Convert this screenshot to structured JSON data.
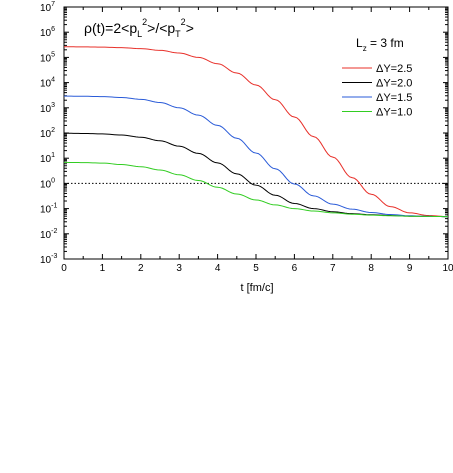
{
  "chart_data": {
    "type": "line",
    "annotation": {
      "prefix": "ρ(t)=2<p",
      "sub_L": "L",
      "sup_1": "2",
      "mid": ">/<p",
      "sub_T": "T",
      "sup_2": "2",
      "suffix": ">"
    },
    "info": {
      "main": "L",
      "sub": "z",
      "rest": " = 3 fm"
    },
    "xlabel": "t [fm/c]",
    "ylabel": "",
    "xlim": [
      0,
      10
    ],
    "ylim_log10": [
      -3,
      7
    ],
    "yscale": "log",
    "x_ticks": [
      "0",
      "1",
      "2",
      "3",
      "4",
      "5",
      "6",
      "7",
      "8",
      "9",
      "10"
    ],
    "y_ticks": [
      {
        "base": "10",
        "exp": "-3"
      },
      {
        "base": "10",
        "exp": "-2"
      },
      {
        "base": "10",
        "exp": "-1"
      },
      {
        "base": "10",
        "exp": "0"
      },
      {
        "base": "10",
        "exp": "1"
      },
      {
        "base": "10",
        "exp": "2"
      },
      {
        "base": "10",
        "exp": "3"
      },
      {
        "base": "10",
        "exp": "4"
      },
      {
        "base": "10",
        "exp": "5"
      },
      {
        "base": "10",
        "exp": "6"
      },
      {
        "base": "10",
        "exp": "7"
      }
    ],
    "reference_line": {
      "y": 1,
      "style": "dotted"
    },
    "legend_position": "top-right",
    "grid": false,
    "x": [
      0,
      0.5,
      1,
      1.5,
      2,
      2.5,
      3,
      3.5,
      4,
      4.5,
      5,
      5.5,
      6,
      6.5,
      7,
      7.5,
      8,
      8.5,
      9,
      9.5,
      10
    ],
    "series": [
      {
        "name": "ΔY=2.5",
        "color": "#e8302a",
        "values": [
          265000,
          262000,
          255000,
          243000,
          222000,
          191000,
          149000,
          100000,
          56000,
          24000,
          8000,
          2100,
          430,
          72,
          11,
          1.7,
          0.37,
          0.12,
          0.068,
          0.053,
          0.048
        ]
      },
      {
        "name": "ΔY=2.0",
        "color": "#000000",
        "values": [
          98,
          96,
          92,
          83,
          68,
          49,
          30,
          15.5,
          6.5,
          2.4,
          0.85,
          0.34,
          0.16,
          0.1,
          0.075,
          0.063,
          0.057,
          0.053,
          0.05,
          0.049,
          0.048
        ]
      },
      {
        "name": "ΔY=1.5",
        "color": "#2a5bd8",
        "values": [
          2900,
          2870,
          2780,
          2560,
          2170,
          1620,
          1000,
          510,
          200,
          62,
          16,
          3.8,
          0.95,
          0.32,
          0.15,
          0.095,
          0.07,
          0.058,
          0.052,
          0.049,
          0.048
        ]
      },
      {
        "name": "ΔY=1.0",
        "color": "#32cd22",
        "values": [
          6.8,
          6.7,
          6.4,
          5.6,
          4.6,
          3.4,
          2.2,
          1.3,
          0.7,
          0.38,
          0.22,
          0.14,
          0.1,
          0.08,
          0.068,
          0.06,
          0.055,
          0.052,
          0.05,
          0.049,
          0.048
        ]
      }
    ]
  }
}
